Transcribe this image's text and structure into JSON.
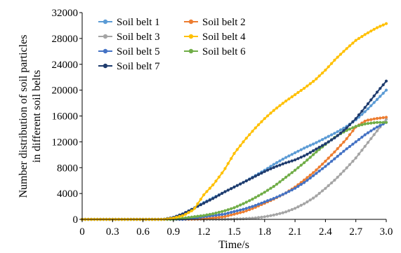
{
  "chart_data": {
    "type": "line",
    "title": "",
    "xlabel": "Time/s",
    "ylabel_lines": [
      "Number distribution of soil particles",
      "in different soil belts"
    ],
    "xlim": [
      0,
      3.0
    ],
    "ylim": [
      0,
      32000
    ],
    "xticks": [
      "0",
      "0.3",
      "0.6",
      "0.9",
      "1.2",
      "1.5",
      "1.8",
      "2.1",
      "2.4",
      "2.7",
      "3.0"
    ],
    "yticks": [
      "0",
      "4000",
      "8000",
      "12000",
      "16000",
      "20000",
      "24000",
      "28000",
      "32000"
    ],
    "grid": false,
    "legend_position": "top-left",
    "series": [
      {
        "name": "Soil belt 1",
        "color": "#5b9bd5",
        "points": [
          [
            0,
            0
          ],
          [
            0.8,
            0
          ],
          [
            0.9,
            300
          ],
          [
            1.0,
            900
          ],
          [
            1.1,
            1700
          ],
          [
            1.2,
            2600
          ],
          [
            1.3,
            3400
          ],
          [
            1.4,
            4200
          ],
          [
            1.5,
            5000
          ],
          [
            1.6,
            5800
          ],
          [
            1.7,
            6700
          ],
          [
            1.8,
            7600
          ],
          [
            1.9,
            8600
          ],
          [
            2.0,
            9500
          ],
          [
            2.1,
            10300
          ],
          [
            2.2,
            11100
          ],
          [
            2.3,
            11800
          ],
          [
            2.4,
            12600
          ],
          [
            2.5,
            13400
          ],
          [
            2.6,
            14300
          ],
          [
            2.7,
            15400
          ],
          [
            2.8,
            16800
          ],
          [
            2.9,
            18400
          ],
          [
            3.0,
            20000
          ]
        ]
      },
      {
        "name": "Soil belt 2",
        "color": "#ed7d31",
        "points": [
          [
            0,
            0
          ],
          [
            1.0,
            0
          ],
          [
            1.2,
            100
          ],
          [
            1.4,
            400
          ],
          [
            1.5,
            800
          ],
          [
            1.6,
            1200
          ],
          [
            1.7,
            1800
          ],
          [
            1.8,
            2500
          ],
          [
            1.9,
            3200
          ],
          [
            2.0,
            4000
          ],
          [
            2.1,
            5000
          ],
          [
            2.2,
            6200
          ],
          [
            2.3,
            7500
          ],
          [
            2.4,
            9000
          ],
          [
            2.5,
            10600
          ],
          [
            2.6,
            12300
          ],
          [
            2.7,
            14300
          ],
          [
            2.8,
            15300
          ],
          [
            2.9,
            15600
          ],
          [
            3.0,
            15800
          ]
        ]
      },
      {
        "name": "Soil belt 3",
        "color": "#a5a5a5",
        "points": [
          [
            0,
            0
          ],
          [
            1.4,
            0
          ],
          [
            1.6,
            100
          ],
          [
            1.7,
            200
          ],
          [
            1.8,
            400
          ],
          [
            1.9,
            700
          ],
          [
            2.0,
            1100
          ],
          [
            2.1,
            1700
          ],
          [
            2.2,
            2500
          ],
          [
            2.3,
            3500
          ],
          [
            2.4,
            4800
          ],
          [
            2.5,
            6200
          ],
          [
            2.6,
            7800
          ],
          [
            2.7,
            9500
          ],
          [
            2.8,
            11500
          ],
          [
            2.9,
            13500
          ],
          [
            3.0,
            15500
          ]
        ]
      },
      {
        "name": "Soil belt 4",
        "color": "#ffc000",
        "points": [
          [
            0,
            0
          ],
          [
            0.8,
            0
          ],
          [
            0.9,
            200
          ],
          [
            1.0,
            600
          ],
          [
            1.1,
            1500
          ],
          [
            1.2,
            3800
          ],
          [
            1.3,
            5500
          ],
          [
            1.4,
            7600
          ],
          [
            1.5,
            10200
          ],
          [
            1.6,
            12200
          ],
          [
            1.7,
            14000
          ],
          [
            1.8,
            15600
          ],
          [
            1.9,
            17000
          ],
          [
            2.0,
            18200
          ],
          [
            2.1,
            19300
          ],
          [
            2.2,
            20400
          ],
          [
            2.3,
            21600
          ],
          [
            2.4,
            23100
          ],
          [
            2.5,
            24800
          ],
          [
            2.6,
            26300
          ],
          [
            2.7,
            27700
          ],
          [
            2.8,
            28700
          ],
          [
            2.9,
            29600
          ],
          [
            3.0,
            30300
          ]
        ]
      },
      {
        "name": "Soil belt 5",
        "color": "#4472c4",
        "points": [
          [
            0,
            0
          ],
          [
            1.0,
            0
          ],
          [
            1.1,
            200
          ],
          [
            1.2,
            400
          ],
          [
            1.3,
            600
          ],
          [
            1.4,
            800
          ],
          [
            1.5,
            1200
          ],
          [
            1.6,
            1600
          ],
          [
            1.7,
            2100
          ],
          [
            1.8,
            2700
          ],
          [
            1.9,
            3300
          ],
          [
            2.0,
            4000
          ],
          [
            2.1,
            4800
          ],
          [
            2.2,
            5800
          ],
          [
            2.3,
            7000
          ],
          [
            2.4,
            8200
          ],
          [
            2.5,
            9500
          ],
          [
            2.6,
            10800
          ],
          [
            2.7,
            12000
          ],
          [
            2.8,
            13200
          ],
          [
            2.9,
            14200
          ],
          [
            3.0,
            15000
          ]
        ]
      },
      {
        "name": "Soil belt 6",
        "color": "#70ad47",
        "points": [
          [
            0,
            0
          ],
          [
            0.9,
            0
          ],
          [
            1.0,
            200
          ],
          [
            1.1,
            400
          ],
          [
            1.2,
            600
          ],
          [
            1.3,
            900
          ],
          [
            1.4,
            1300
          ],
          [
            1.5,
            1800
          ],
          [
            1.6,
            2500
          ],
          [
            1.7,
            3300
          ],
          [
            1.8,
            4200
          ],
          [
            1.9,
            5200
          ],
          [
            2.0,
            6400
          ],
          [
            2.1,
            7600
          ],
          [
            2.2,
            8900
          ],
          [
            2.3,
            10300
          ],
          [
            2.4,
            11600
          ],
          [
            2.5,
            12800
          ],
          [
            2.6,
            13700
          ],
          [
            2.7,
            14400
          ],
          [
            2.8,
            14800
          ],
          [
            2.9,
            15000
          ],
          [
            3.0,
            15000
          ]
        ]
      },
      {
        "name": "Soil belt 7",
        "color": "#1f3c6e",
        "points": [
          [
            0,
            0
          ],
          [
            0.8,
            0
          ],
          [
            0.9,
            300
          ],
          [
            1.0,
            900
          ],
          [
            1.1,
            1700
          ],
          [
            1.2,
            2500
          ],
          [
            1.3,
            3300
          ],
          [
            1.4,
            4200
          ],
          [
            1.5,
            5000
          ],
          [
            1.6,
            5800
          ],
          [
            1.7,
            6600
          ],
          [
            1.8,
            7400
          ],
          [
            1.9,
            8100
          ],
          [
            2.0,
            8700
          ],
          [
            2.1,
            9200
          ],
          [
            2.2,
            9900
          ],
          [
            2.3,
            10800
          ],
          [
            2.4,
            11700
          ],
          [
            2.5,
            12700
          ],
          [
            2.6,
            14000
          ],
          [
            2.7,
            15600
          ],
          [
            2.8,
            17500
          ],
          [
            2.9,
            19500
          ],
          [
            3.0,
            21400
          ]
        ]
      }
    ]
  }
}
